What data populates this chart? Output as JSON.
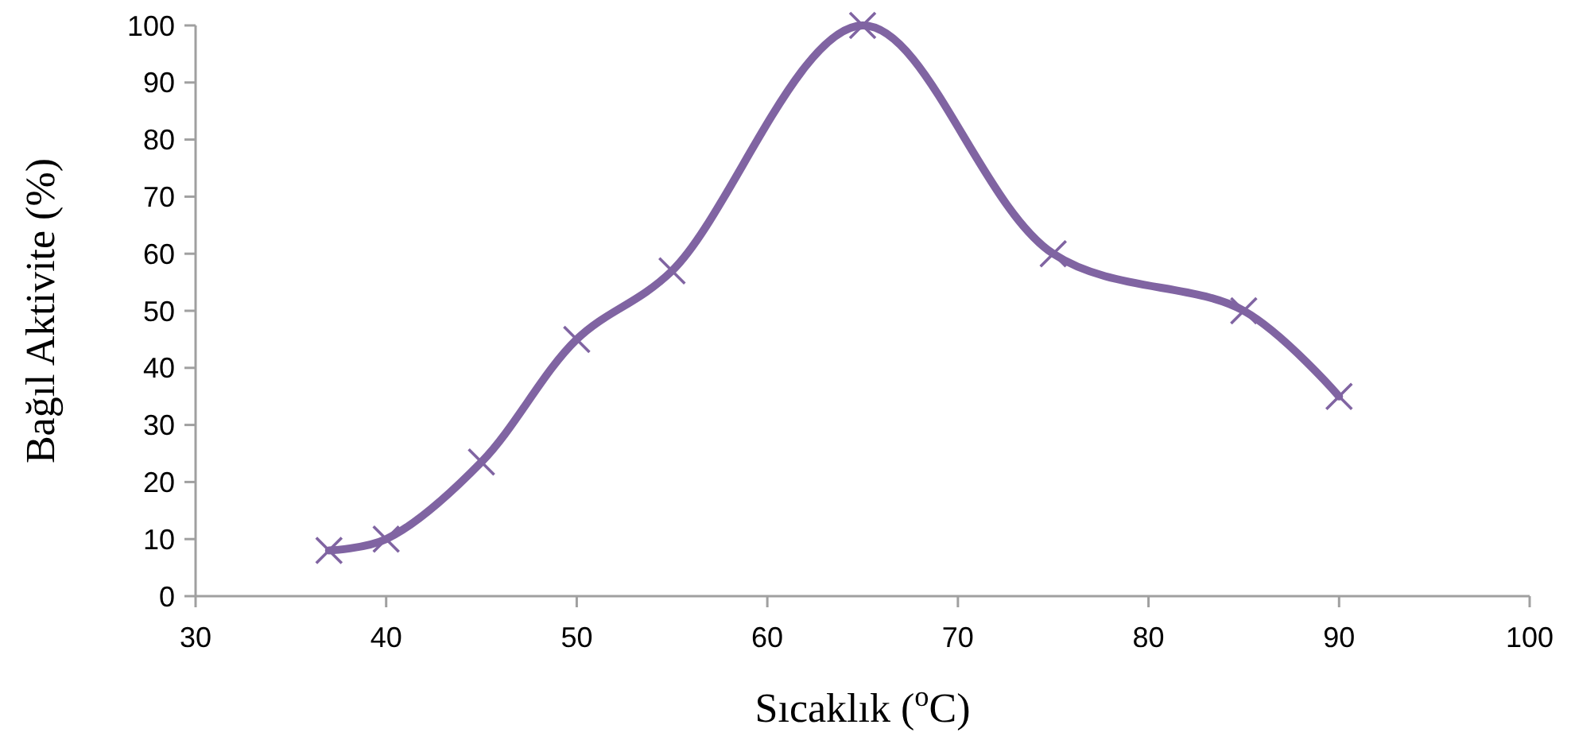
{
  "chart_data": {
    "type": "line",
    "xlabel": "Sıcaklık ($^{o}$C)",
    "ylabel": "Bağıl Aktivite (%)",
    "x": [
      37,
      40,
      45,
      50,
      55,
      65,
      75,
      85,
      90
    ],
    "series": [
      {
        "color": "#8064a2",
        "values": [
          8,
          10,
          23.5,
          45,
          57,
          100,
          60,
          50,
          35
        ]
      }
    ],
    "xlim": [
      30,
      100
    ],
    "xticks": [
      30,
      40,
      50,
      60,
      70,
      80,
      90,
      100
    ],
    "ylim": [
      0,
      100
    ],
    "yticks": [
      0,
      10,
      20,
      30,
      40,
      50,
      60,
      70,
      80,
      90,
      100
    ],
    "grid": false,
    "marker": "cross",
    "line_style": "solid"
  }
}
